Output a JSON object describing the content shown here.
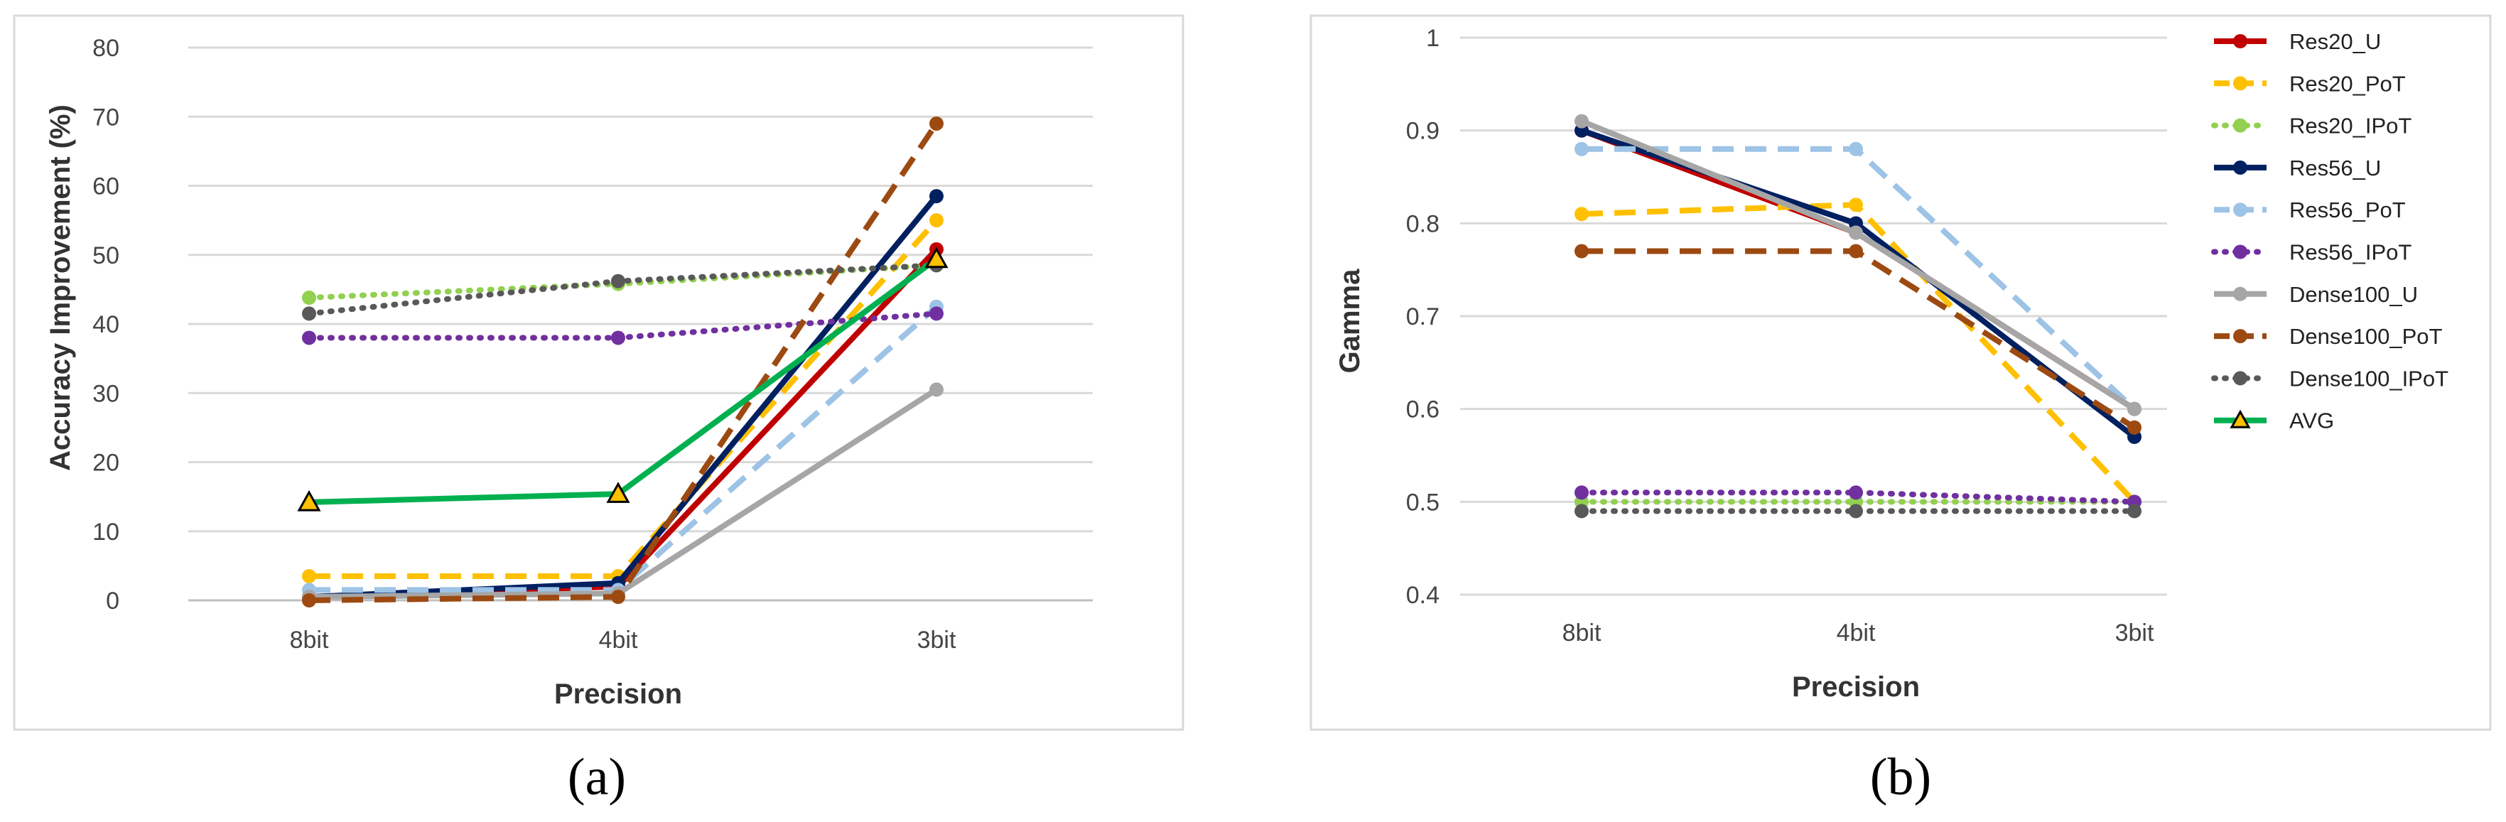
{
  "chart_data": [
    {
      "type": "line",
      "panel_label": "(a)",
      "title": "",
      "xlabel": "Precision",
      "ylabel": "Accuracy Improvement (%)",
      "categories": [
        "8bit",
        "4bit",
        "3bit"
      ],
      "ylim": [
        0,
        80
      ],
      "yticks": [
        "0",
        "10",
        "20",
        "30",
        "40",
        "50",
        "60",
        "70",
        "80"
      ],
      "grid": true,
      "legend": "none",
      "series": [
        {
          "name": "Res20_U",
          "values": [
            0.5,
            2.0,
            50.8
          ],
          "color": "#c00000",
          "dash": "solid",
          "marker": "circle"
        },
        {
          "name": "Res20_PoT",
          "values": [
            3.5,
            3.5,
            55.0
          ],
          "color": "#ffc000",
          "dash": "dashed",
          "marker": "circle"
        },
        {
          "name": "Res20_IPoT",
          "values": [
            43.8,
            45.8,
            48.5
          ],
          "color": "#92d050",
          "dash": "dotted",
          "marker": "circle"
        },
        {
          "name": "Res56_U",
          "values": [
            0.5,
            2.5,
            58.5
          ],
          "color": "#002060",
          "dash": "solid",
          "marker": "circle"
        },
        {
          "name": "Res56_PoT",
          "values": [
            1.5,
            1.5,
            42.5
          ],
          "color": "#9dc3e6",
          "dash": "dashed",
          "marker": "circle"
        },
        {
          "name": "Res56_IPoT",
          "values": [
            38.0,
            38.0,
            41.5
          ],
          "color": "#7030a0",
          "dash": "dotted",
          "marker": "circle"
        },
        {
          "name": "Dense100_U",
          "values": [
            0.5,
            1.0,
            30.5
          ],
          "color": "#a6a6a6",
          "dash": "solid",
          "marker": "circle"
        },
        {
          "name": "Dense100_PoT",
          "values": [
            0.0,
            0.5,
            69.0
          ],
          "color": "#9c4a12",
          "dash": "dashed",
          "marker": "circle"
        },
        {
          "name": "Dense100_IPoT",
          "values": [
            41.5,
            46.2,
            48.5
          ],
          "color": "#595959",
          "dash": "dotted",
          "marker": "circle"
        },
        {
          "name": "AVG",
          "values": [
            14.2,
            15.4,
            49.4
          ],
          "color": "#00b050",
          "dash": "solid",
          "marker": "triangle"
        }
      ]
    },
    {
      "type": "line",
      "panel_label": "(b)",
      "title": "",
      "xlabel": "Precision",
      "ylabel": "Gamma",
      "categories": [
        "8bit",
        "4bit",
        "3bit"
      ],
      "ylim": [
        0.4,
        1.0
      ],
      "yticks": [
        "0.4",
        "0.5",
        "0.6",
        "0.7",
        "0.8",
        "0.9",
        "1"
      ],
      "grid": true,
      "legend": "right",
      "series": [
        {
          "name": "Res20_U",
          "values": [
            0.9,
            0.79,
            0.6
          ],
          "color": "#c00000",
          "dash": "solid",
          "marker": "circle"
        },
        {
          "name": "Res20_PoT",
          "values": [
            0.81,
            0.82,
            0.5
          ],
          "color": "#ffc000",
          "dash": "dashed",
          "marker": "circle"
        },
        {
          "name": "Res20_IPoT",
          "values": [
            0.5,
            0.5,
            0.5
          ],
          "color": "#92d050",
          "dash": "dotted",
          "marker": "circle"
        },
        {
          "name": "Res56_U",
          "values": [
            0.9,
            0.8,
            0.57
          ],
          "color": "#002060",
          "dash": "solid",
          "marker": "circle"
        },
        {
          "name": "Res56_PoT",
          "values": [
            0.88,
            0.88,
            0.6
          ],
          "color": "#9dc3e6",
          "dash": "dashed",
          "marker": "circle"
        },
        {
          "name": "Res56_IPoT",
          "values": [
            0.51,
            0.51,
            0.5
          ],
          "color": "#7030a0",
          "dash": "dotted",
          "marker": "circle"
        },
        {
          "name": "Dense100_U",
          "values": [
            0.91,
            0.79,
            0.6
          ],
          "color": "#a6a6a6",
          "dash": "solid",
          "marker": "circle"
        },
        {
          "name": "Dense100_PoT",
          "values": [
            0.77,
            0.77,
            0.58
          ],
          "color": "#9c4a12",
          "dash": "dashed",
          "marker": "circle"
        },
        {
          "name": "Dense100_IPoT",
          "values": [
            0.49,
            0.49,
            0.49
          ],
          "color": "#595959",
          "dash": "dotted",
          "marker": "circle"
        },
        {
          "name": "AVG",
          "values": [
            null,
            null,
            null
          ],
          "color": "#00b050",
          "dash": "solid",
          "marker": "triangle"
        }
      ]
    }
  ]
}
